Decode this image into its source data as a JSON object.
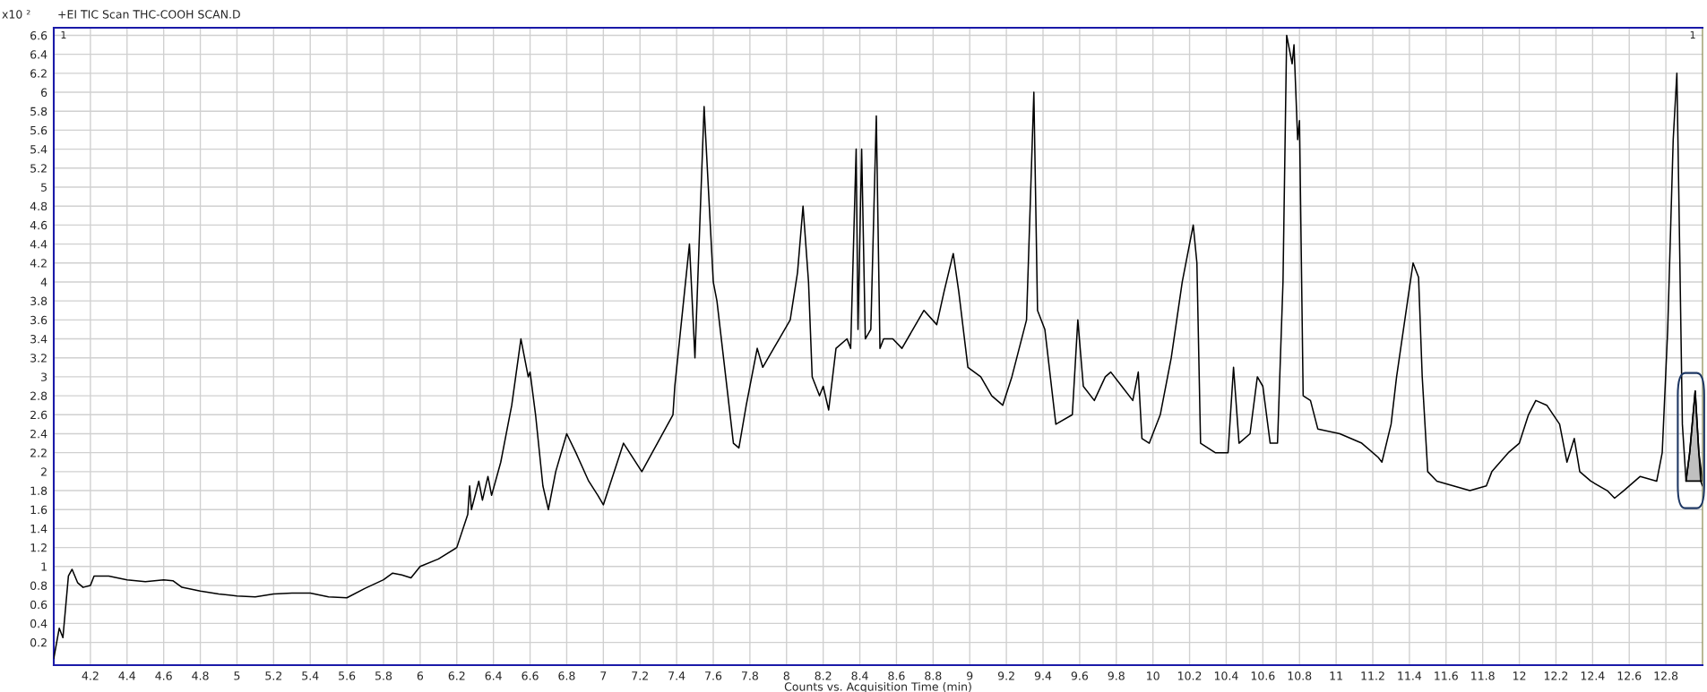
{
  "chart_data": {
    "type": "line",
    "title": "+EI TIC Scan THC-COOH SCAN.D",
    "xlabel": "Counts vs. Acquisition Time (min)",
    "ylabel": "x10 ²",
    "annotations": [
      "1",
      "1"
    ],
    "series": [
      {
        "color": "#000000",
        "x": [
          4.0,
          4.03,
          4.05,
          4.08,
          4.1,
          4.13,
          4.16,
          4.2,
          4.22,
          4.3,
          4.4,
          4.5,
          4.6,
          4.65,
          4.7,
          4.8,
          4.9,
          5.0,
          5.1,
          5.2,
          5.3,
          5.4,
          5.5,
          5.6,
          5.7,
          5.8,
          5.85,
          5.9,
          5.95,
          6.0,
          6.1,
          6.2,
          6.26,
          6.27,
          6.28,
          6.32,
          6.34,
          6.37,
          6.39,
          6.44,
          6.47,
          6.5,
          6.55,
          6.59,
          6.6,
          6.63,
          6.67,
          6.7,
          6.74,
          6.8,
          6.85,
          6.92,
          6.97,
          7.0,
          7.11,
          7.21,
          7.38,
          7.39,
          7.47,
          7.5,
          7.55,
          7.6,
          7.62,
          7.71,
          7.74,
          7.78,
          7.84,
          7.87,
          7.93,
          7.96,
          8.02,
          8.06,
          8.09,
          8.12,
          8.14,
          8.18,
          8.2,
          8.23,
          8.27,
          8.33,
          8.35,
          8.38,
          8.39,
          8.41,
          8.43,
          8.46,
          8.49,
          8.51,
          8.53,
          8.58,
          8.63,
          8.69,
          8.75,
          8.82,
          8.86,
          8.91,
          8.94,
          8.99,
          9.06,
          9.12,
          9.18,
          9.23,
          9.31,
          9.35,
          9.37,
          9.41,
          9.47,
          9.56,
          9.59,
          9.62,
          9.68,
          9.74,
          9.77,
          9.83,
          9.89,
          9.92,
          9.94,
          9.98,
          10.04,
          10.1,
          10.16,
          10.22,
          10.24,
          10.26,
          10.34,
          10.41,
          10.44,
          10.47,
          10.53,
          10.57,
          10.6,
          10.64,
          10.68,
          10.71,
          10.73,
          10.76,
          10.77,
          10.79,
          10.8,
          10.82,
          10.86,
          10.9,
          11.02,
          11.14,
          11.23,
          11.25,
          11.3,
          11.33,
          11.39,
          11.42,
          11.45,
          11.47,
          11.5,
          11.55,
          11.64,
          11.73,
          11.82,
          11.85,
          11.94,
          12.0,
          12.05,
          12.09,
          12.15,
          12.22,
          12.26,
          12.3,
          12.33,
          12.39,
          12.48,
          12.52,
          12.57,
          12.66,
          12.75,
          12.78,
          12.81,
          12.84,
          12.86,
          12.87,
          12.89,
          12.91,
          12.93,
          12.96,
          12.98,
          12.99,
          13.0
        ],
        "values": [
          0.03,
          0.35,
          0.25,
          0.9,
          0.97,
          0.83,
          0.78,
          0.8,
          0.9,
          0.9,
          0.86,
          0.84,
          0.86,
          0.85,
          0.78,
          0.74,
          0.71,
          0.69,
          0.68,
          0.71,
          0.72,
          0.72,
          0.68,
          0.67,
          0.77,
          0.86,
          0.93,
          0.91,
          0.88,
          1.0,
          1.08,
          1.2,
          1.55,
          1.85,
          1.6,
          1.9,
          1.7,
          1.95,
          1.75,
          2.1,
          2.4,
          2.7,
          3.4,
          3.0,
          3.05,
          2.6,
          1.85,
          1.6,
          2.0,
          2.4,
          2.2,
          1.9,
          1.75,
          1.65,
          2.3,
          2.0,
          2.6,
          2.9,
          4.4,
          3.2,
          5.85,
          4.0,
          3.8,
          2.3,
          2.25,
          2.7,
          3.3,
          3.1,
          3.3,
          3.4,
          3.6,
          4.1,
          4.8,
          4.0,
          3.0,
          2.8,
          2.9,
          2.65,
          3.3,
          3.4,
          3.3,
          5.4,
          3.5,
          5.4,
          3.4,
          3.5,
          5.75,
          3.3,
          3.4,
          3.4,
          3.3,
          3.5,
          3.7,
          3.55,
          3.9,
          4.3,
          3.9,
          3.1,
          3.0,
          2.8,
          2.7,
          3.0,
          3.6,
          6.0,
          3.7,
          3.5,
          2.5,
          2.6,
          3.6,
          2.9,
          2.75,
          3.0,
          3.05,
          2.9,
          2.75,
          3.05,
          2.35,
          2.3,
          2.6,
          3.2,
          4.0,
          4.6,
          4.2,
          2.3,
          2.2,
          2.2,
          3.1,
          2.3,
          2.4,
          3.0,
          2.9,
          2.3,
          2.3,
          4.0,
          6.6,
          6.3,
          6.5,
          5.5,
          5.7,
          2.8,
          2.75,
          2.45,
          2.4,
          2.3,
          2.15,
          2.1,
          2.5,
          3.0,
          3.8,
          4.2,
          4.05,
          3.0,
          2.0,
          1.9,
          1.85,
          1.8,
          1.85,
          2.0,
          2.2,
          2.3,
          2.6,
          2.75,
          2.7,
          2.5,
          2.1,
          2.35,
          2.0,
          1.9,
          1.8,
          1.72,
          1.8,
          1.95,
          1.9,
          2.2,
          3.5,
          5.5,
          6.2,
          5.0,
          2.5,
          1.9,
          2.2,
          2.85,
          2.2,
          1.9,
          1.85
        ]
      },
      {
        "type": "area",
        "color": "#c0c0c0",
        "x": [
          12.91,
          12.93,
          12.96,
          12.98,
          13.0
        ],
        "values": [
          1.9,
          2.2,
          2.85,
          2.2,
          1.9
        ]
      }
    ],
    "xlim": [
      4.0,
      13.0
    ],
    "xticks": [
      4.2,
      4.4,
      4.6,
      4.8,
      5,
      5.2,
      5.4,
      5.6,
      5.8,
      6,
      6.2,
      6.4,
      6.6,
      6.8,
      7,
      7.2,
      7.4,
      7.6,
      7.8,
      8,
      8.2,
      8.4,
      8.6,
      8.8,
      9,
      9.2,
      9.4,
      9.6,
      9.8,
      10,
      10.2,
      10.4,
      10.6,
      10.8,
      11,
      11.2,
      11.4,
      11.6,
      11.8,
      12,
      12.2,
      12.4,
      12.6,
      12.8
    ],
    "ylim": [
      -0.04,
      6.68
    ],
    "yticks": [
      0.2,
      0.4,
      0.6,
      0.8,
      1,
      1.2,
      1.4,
      1.6,
      1.8,
      2,
      2.2,
      2.4,
      2.6,
      2.8,
      3,
      3.2,
      3.4,
      3.6,
      3.8,
      4,
      4.2,
      4.4,
      4.6,
      4.8,
      5,
      5.2,
      5.4,
      5.6,
      5.8,
      6,
      6.2,
      6.4,
      6.6
    ],
    "grid": true,
    "legend": false,
    "marker": "none",
    "line_style": "solid"
  }
}
